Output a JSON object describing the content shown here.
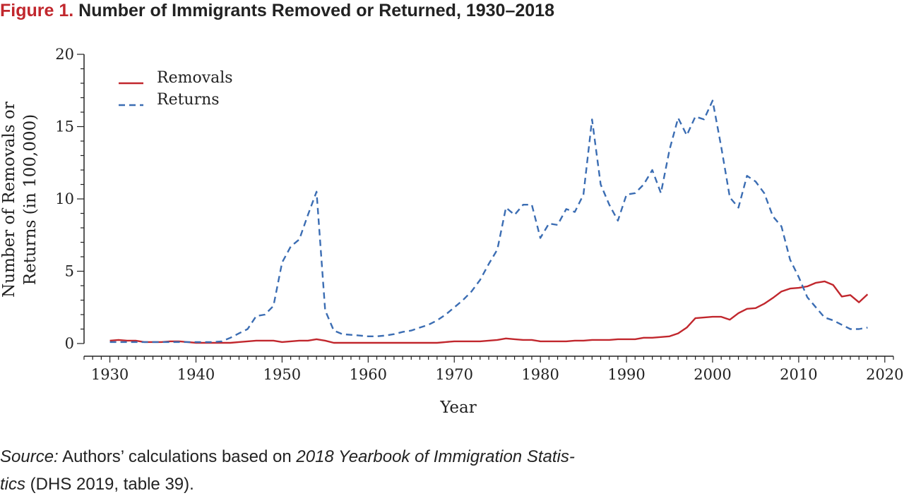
{
  "figure": {
    "label": "Figure 1.",
    "title": "Number of Immigrants Removed or Returned, 1930–2018"
  },
  "source": {
    "label": "Source:",
    "text_1": "Authors’ calculations based on",
    "italic_title_1": "2018 Yearbook of Immigration Statis-",
    "italic_title_2": "tics",
    "text_2": "(DHS 2019, table 39)."
  },
  "chart_data": {
    "type": "line",
    "xlabel": "Year",
    "ylabel_line1": "Number of Removals or",
    "ylabel_line2": "Returns (in 100,000)",
    "xlim": [
      1927,
      2021
    ],
    "ylim": [
      0,
      20
    ],
    "x_ticks": [
      1930,
      1940,
      1950,
      1960,
      1970,
      1980,
      1990,
      2000,
      2010,
      2020
    ],
    "y_ticks": [
      0,
      5,
      10,
      15,
      20
    ],
    "y_tick_labels": [
      "0",
      "5",
      "10",
      "15",
      "20"
    ],
    "legend_position": "top-left",
    "grid": false,
    "x": [
      1930,
      1931,
      1932,
      1933,
      1934,
      1935,
      1936,
      1937,
      1938,
      1939,
      1940,
      1941,
      1942,
      1943,
      1944,
      1945,
      1946,
      1947,
      1948,
      1949,
      1950,
      1951,
      1952,
      1953,
      1954,
      1955,
      1956,
      1957,
      1958,
      1959,
      1960,
      1961,
      1962,
      1963,
      1964,
      1965,
      1966,
      1967,
      1968,
      1969,
      1970,
      1971,
      1972,
      1973,
      1974,
      1975,
      1976,
      1977,
      1978,
      1979,
      1980,
      1981,
      1982,
      1983,
      1984,
      1985,
      1986,
      1987,
      1988,
      1989,
      1990,
      1991,
      1992,
      1993,
      1994,
      1995,
      1996,
      1997,
      1998,
      1999,
      2000,
      2001,
      2002,
      2003,
      2004,
      2005,
      2006,
      2007,
      2008,
      2009,
      2010,
      2011,
      2012,
      2013,
      2014,
      2015,
      2016,
      2017,
      2018
    ],
    "series": [
      {
        "name": "Removals",
        "color": "#c1272d",
        "dash": "solid",
        "values": [
          0.2,
          0.25,
          0.2,
          0.2,
          0.1,
          0.1,
          0.1,
          0.15,
          0.15,
          0.1,
          0.05,
          0.05,
          0.05,
          0.05,
          0.05,
          0.1,
          0.15,
          0.2,
          0.2,
          0.2,
          0.1,
          0.15,
          0.2,
          0.2,
          0.3,
          0.2,
          0.05,
          0.05,
          0.05,
          0.05,
          0.05,
          0.05,
          0.05,
          0.05,
          0.05,
          0.05,
          0.05,
          0.05,
          0.05,
          0.1,
          0.15,
          0.15,
          0.15,
          0.15,
          0.2,
          0.25,
          0.35,
          0.3,
          0.25,
          0.25,
          0.15,
          0.15,
          0.15,
          0.15,
          0.2,
          0.2,
          0.25,
          0.25,
          0.25,
          0.3,
          0.3,
          0.3,
          0.4,
          0.4,
          0.45,
          0.5,
          0.7,
          1.1,
          1.75,
          1.8,
          1.85,
          1.85,
          1.65,
          2.1,
          2.4,
          2.45,
          2.75,
          3.15,
          3.6,
          3.8,
          3.85,
          3.95,
          4.2,
          4.3,
          4.05,
          3.25,
          3.35,
          2.85,
          3.4
        ]
      },
      {
        "name": "Returns",
        "color": "#3b6db3",
        "dash": "dashed",
        "values": [
          0.1,
          0.1,
          0.1,
          0.1,
          0.1,
          0.1,
          0.1,
          0.1,
          0.1,
          0.1,
          0.1,
          0.1,
          0.1,
          0.15,
          0.4,
          0.7,
          1.0,
          1.9,
          2.0,
          2.6,
          5.6,
          6.7,
          7.2,
          8.9,
          10.5,
          2.3,
          0.9,
          0.65,
          0.6,
          0.55,
          0.5,
          0.5,
          0.55,
          0.65,
          0.8,
          0.9,
          1.1,
          1.3,
          1.6,
          2.0,
          2.5,
          3.0,
          3.6,
          4.4,
          5.5,
          6.5,
          9.4,
          8.9,
          9.6,
          9.6,
          7.3,
          8.3,
          8.2,
          9.3,
          9.1,
          10.3,
          15.5,
          11.0,
          9.6,
          8.5,
          10.3,
          10.4,
          11.0,
          12.0,
          10.4,
          13.4,
          15.6,
          14.4,
          15.7,
          15.5,
          16.8,
          13.6,
          10.1,
          9.4,
          11.6,
          11.2,
          10.4,
          8.8,
          8.1,
          5.8,
          4.6,
          3.2,
          2.5,
          1.8,
          1.6,
          1.3,
          1.0,
          1.0,
          1.1
        ]
      }
    ]
  }
}
